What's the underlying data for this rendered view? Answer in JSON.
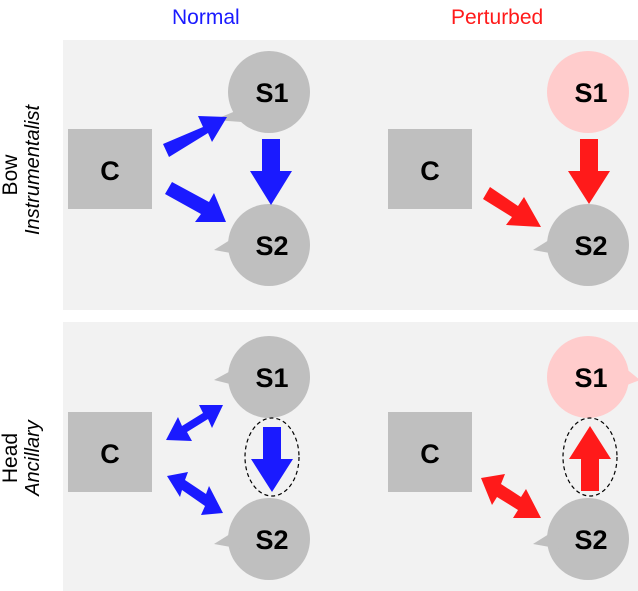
{
  "columns": {
    "normal": {
      "label": "Normal",
      "color": "#1a1aff"
    },
    "perturbed": {
      "label": "Perturbed",
      "color": "#ff1a1a"
    }
  },
  "rows": {
    "bow": {
      "label": "Bow",
      "sublabel": "Instrumentalist"
    },
    "head": {
      "label": "Head",
      "sublabel": "Ancillary"
    }
  },
  "nodes": {
    "c": "C",
    "s1": "S1",
    "s2": "S2"
  },
  "colors": {
    "panel": "#f2f2f2",
    "node_gray": "#bfbfbf",
    "node_pink": "#ffcccc",
    "arrow_blue": "#1a1aff",
    "arrow_red": "#ff1a1a"
  }
}
